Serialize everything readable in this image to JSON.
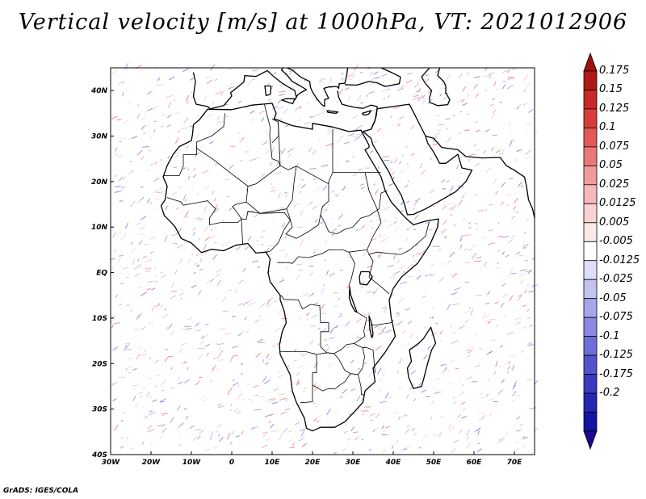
{
  "title": "Vertical velocity [m/s] at 1000hPa, VT: 2021012906",
  "credit": "GrADS: IGES/COLA",
  "map": {
    "projection": "lat-lon",
    "lon_range": [
      -30,
      75
    ],
    "lat_range": [
      -40,
      45
    ],
    "lat_labels": [
      "40S",
      "30S",
      "20S",
      "10S",
      "EQ",
      "10N",
      "20N",
      "30N",
      "40N"
    ],
    "lat_values": [
      -40,
      -30,
      -20,
      -10,
      0,
      10,
      20,
      30,
      40
    ],
    "lon_labels": [
      "30W",
      "20W",
      "10W",
      "0",
      "10E",
      "20E",
      "30E",
      "40E",
      "50E",
      "60E",
      "70E"
    ],
    "lon_values": [
      -30,
      -20,
      -10,
      0,
      10,
      20,
      30,
      40,
      50,
      60,
      70
    ]
  },
  "colorbar": {
    "levels": [
      "0.175",
      "0.15",
      "0.125",
      "0.1",
      "0.075",
      "0.05",
      "0.025",
      "0.0125",
      "0.005",
      "-0.005",
      "-0.0125",
      "-0.025",
      "-0.05",
      "-0.075",
      "-0.1",
      "-0.125",
      "-0.175",
      "-0.2"
    ],
    "colors": [
      "#b01818",
      "#c82828",
      "#d83c3c",
      "#e45858",
      "#ec7878",
      "#f29a9a",
      "#f6b8b8",
      "#fad2d2",
      "#fde8e8",
      "#ffffff",
      "#dedef8",
      "#c4c4f2",
      "#a6a6ea",
      "#8a8ae2",
      "#6e6ed8",
      "#5252cc",
      "#3a3ac0",
      "#2626b0",
      "#1414a0"
    ],
    "tip_colors": {
      "top": "#a01010",
      "bottom": "#1a0a90"
    }
  }
}
